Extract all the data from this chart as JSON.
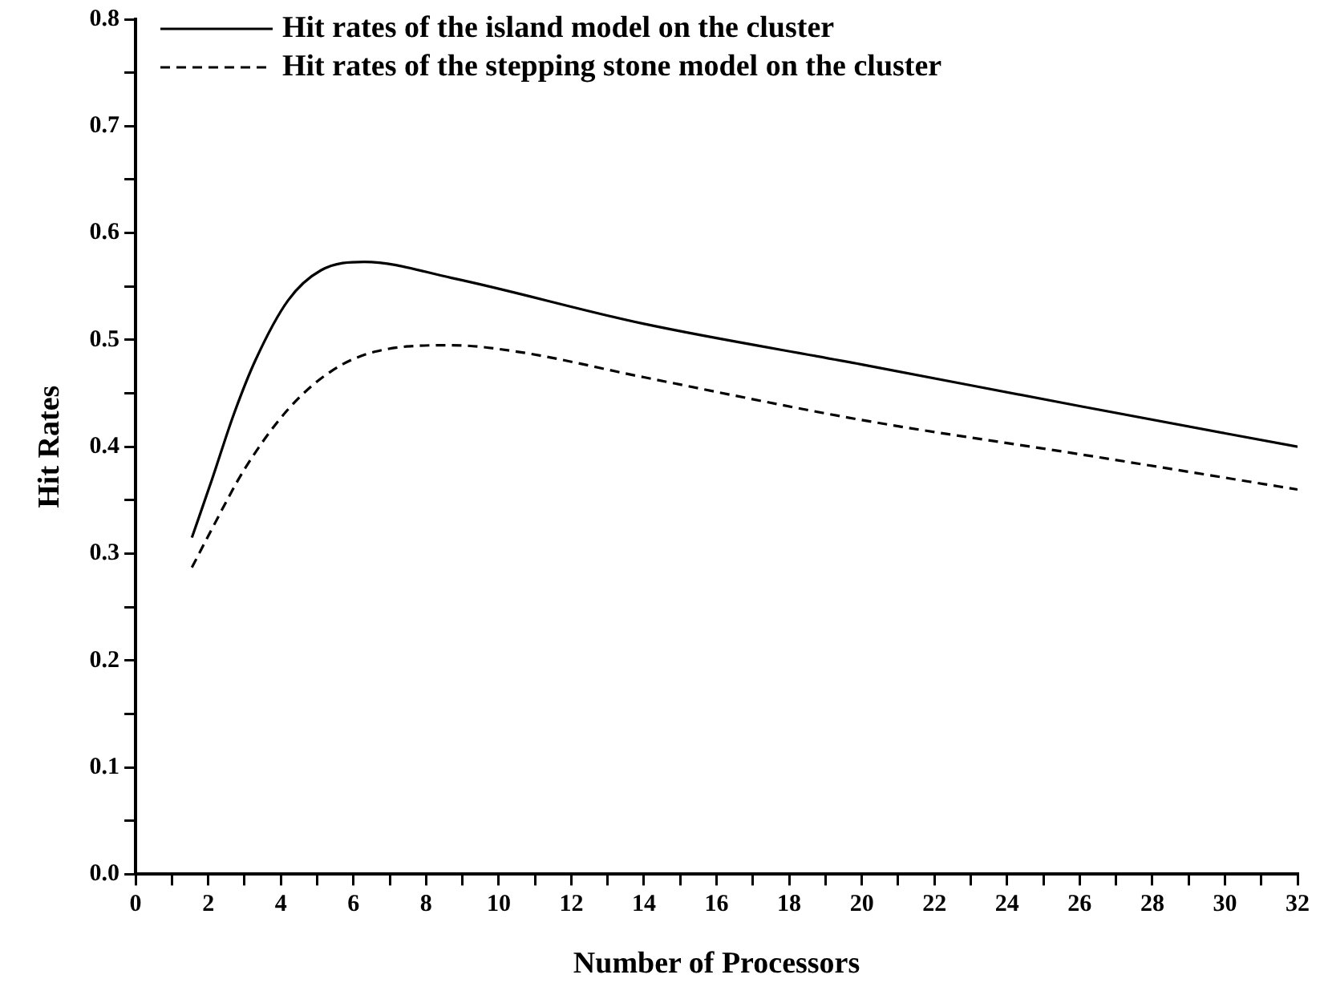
{
  "chart_data": {
    "type": "line",
    "xlabel": "Number of Processors",
    "ylabel": "Hit Rates",
    "xlim": [
      0,
      32
    ],
    "xticks": [
      0,
      {
        "value": 1,
        "label": null
      },
      2,
      {
        "value": 3,
        "label": null
      },
      4,
      {
        "value": 5,
        "label": null
      },
      6,
      {
        "value": 7,
        "label": null
      },
      8,
      {
        "value": 9,
        "label": null
      },
      10,
      {
        "value": 11,
        "label": null
      },
      12,
      {
        "value": 13,
        "label": null
      },
      14,
      {
        "value": 15,
        "label": null
      },
      16,
      {
        "value": 17,
        "label": null
      },
      18,
      {
        "value": 19,
        "label": null
      },
      20,
      {
        "value": 21,
        "label": null
      },
      22,
      {
        "value": 23,
        "label": null
      },
      24,
      {
        "value": 25,
        "label": null
      },
      26,
      {
        "value": 27,
        "label": null
      },
      28,
      {
        "value": 29,
        "label": null
      },
      30,
      {
        "value": 31,
        "label": null
      },
      32
    ],
    "ylim": [
      0,
      0.8
    ],
    "yticks": [
      {
        "value": 0,
        "label": "0.0"
      },
      {
        "value": 0.05,
        "label": null
      },
      0.1,
      {
        "value": 0.15,
        "label": null
      },
      0.2,
      {
        "value": 0.25,
        "label": null
      },
      0.3,
      {
        "value": 0.35,
        "label": null
      },
      0.4,
      {
        "value": 0.45,
        "label": null
      },
      0.5,
      {
        "value": 0.55,
        "label": null
      },
      0.6,
      {
        "value": 0.65,
        "label": null
      },
      0.7,
      {
        "value": 0.75,
        "label": null
      },
      0.8
    ],
    "grid": false,
    "legend": "top",
    "marker": "none",
    "series": [
      {
        "name": "Hit rates of the island model on the cluster",
        "color": "#000000",
        "line_style": "solid",
        "x": [
          1.55,
          2.1,
          2.7,
          3.3,
          4.2,
          5.1,
          6.3,
          8.7,
          14,
          20,
          26,
          32
        ],
        "values": [
          0.315,
          0.369,
          0.43,
          0.481,
          0.537,
          0.565,
          0.573,
          0.558,
          0.515,
          0.477,
          0.438,
          0.4
        ]
      },
      {
        "name": "Hit rates of the stepping stone model on the cluster",
        "color": "#000000",
        "line_style": "dashed",
        "x": [
          1.55,
          2.1,
          3,
          4.2,
          5.4,
          6.6,
          8.7,
          10.5,
          14,
          20,
          26,
          32
        ],
        "values": [
          0.287,
          0.323,
          0.379,
          0.435,
          0.471,
          0.489,
          0.495,
          0.489,
          0.465,
          0.425,
          0.393,
          0.36
        ]
      }
    ]
  }
}
